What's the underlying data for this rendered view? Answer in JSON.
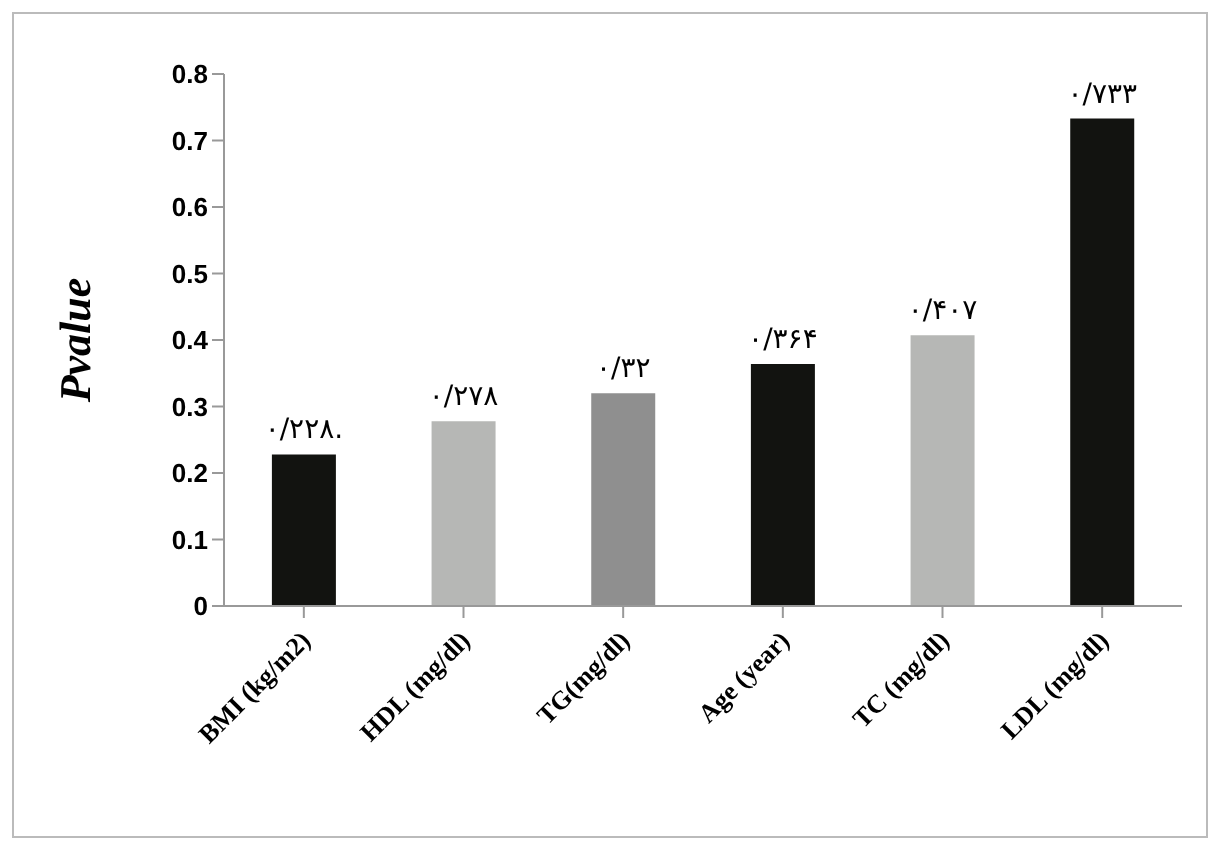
{
  "chart_data": {
    "type": "bar",
    "ylabel": "Pvalue",
    "categories": [
      "BMI (kg/m2)",
      "HDL (mg/dl)",
      "TG(mg/dl)",
      "Age (year)",
      "TC (mg/dl)",
      "LDL (mg/dl)"
    ],
    "values": [
      0.228,
      0.278,
      0.32,
      0.364,
      0.407,
      0.733
    ],
    "colors": [
      "#121310",
      "#b6b7b5",
      "#8f8f8f",
      "#121310",
      "#b6b7b5",
      "#121310"
    ],
    "value_labels": [
      "۰/۲۲۸.",
      "۰/۲۷۸",
      "۰/۳۲",
      "۰/۳۶۴",
      "۰/۴۰۷",
      "۰/۷۳۳"
    ],
    "ylim": [
      0,
      0.8
    ],
    "yticks": [
      0,
      0.1,
      0.2,
      0.3,
      0.4,
      0.5,
      0.6,
      0.7,
      0.8
    ],
    "grid": false,
    "legend": false
  }
}
